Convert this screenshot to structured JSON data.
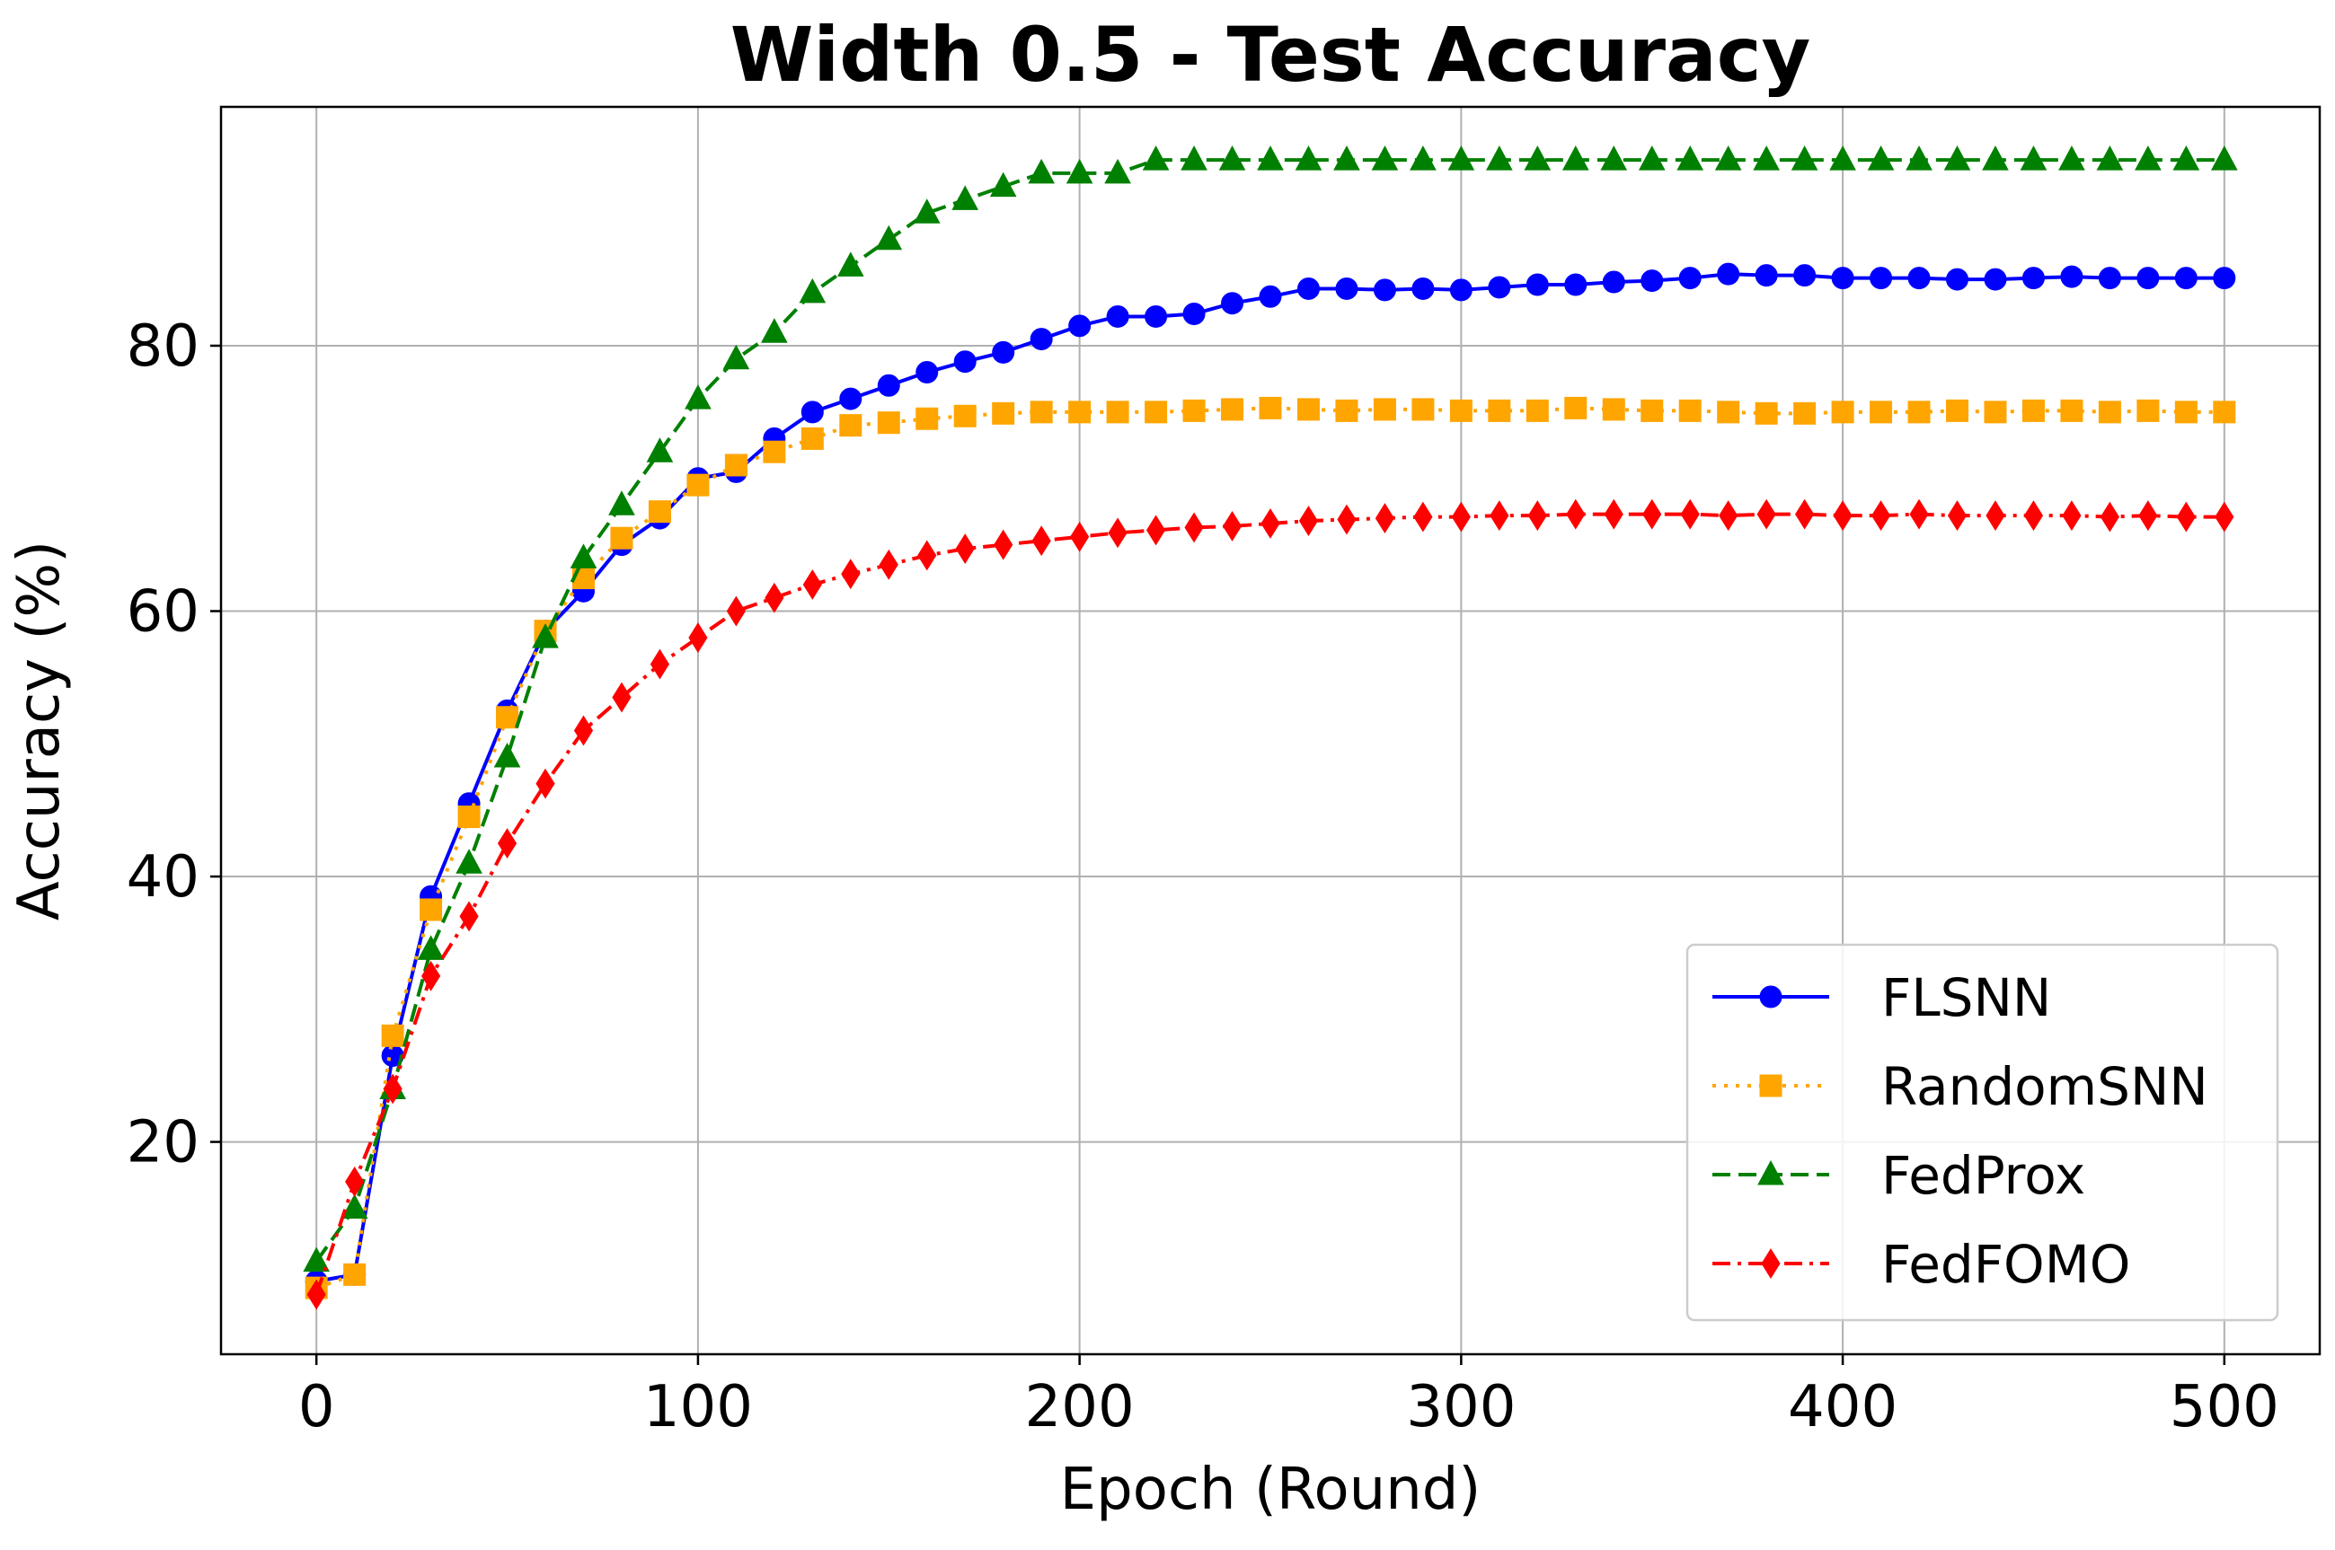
{
  "chart_data": {
    "type": "line",
    "title": "Width 0.5 - Test Accuracy",
    "xlabel": "Epoch (Round)",
    "ylabel": "Accuracy (%)",
    "xlim": [
      -25,
      525
    ],
    "ylim": [
      4,
      98
    ],
    "xticks": [
      0,
      100,
      200,
      300,
      400,
      500
    ],
    "yticks": [
      20,
      40,
      60,
      80
    ],
    "grid": true,
    "legend_position": "lower right",
    "series": [
      {
        "name": "FLSNN",
        "color": "#0000ff",
        "linestyle": "solid",
        "marker": "circle",
        "x": [
          0,
          10,
          20,
          30,
          40,
          50,
          60,
          70,
          80,
          90,
          100,
          110,
          120,
          130,
          140,
          150,
          160,
          170,
          180,
          190,
          200,
          210,
          220,
          230,
          240,
          250,
          260,
          270,
          280,
          290,
          300,
          310,
          320,
          330,
          340,
          350,
          360,
          370,
          380,
          390,
          400,
          410,
          420,
          430,
          440,
          450,
          460,
          470,
          480,
          490,
          500
        ],
        "values": [
          9.5,
          10,
          26.5,
          38.5,
          45.5,
          52.5,
          58.5,
          61.5,
          65,
          67,
          70,
          70.5,
          73,
          75,
          76,
          77,
          78,
          78.8,
          79.5,
          80.5,
          81.5,
          82.2,
          82.2,
          82.4,
          83.2,
          83.7,
          84.3,
          84.3,
          84.2,
          84.3,
          84.2,
          84.4,
          84.6,
          84.6,
          84.8,
          84.9,
          85.1,
          85.4,
          85.3,
          85.3,
          85.1,
          85.1,
          85.1,
          85.0,
          85.0,
          85.1,
          85.2,
          85.1,
          85.1,
          85.1,
          85.1
        ]
      },
      {
        "name": "RandomSNN",
        "color": "#ffa500",
        "linestyle": "dotted",
        "marker": "square",
        "x": [
          0,
          10,
          20,
          30,
          40,
          50,
          60,
          70,
          80,
          90,
          100,
          110,
          120,
          130,
          140,
          150,
          160,
          170,
          180,
          190,
          200,
          210,
          220,
          230,
          240,
          250,
          260,
          270,
          280,
          290,
          300,
          310,
          320,
          330,
          340,
          350,
          360,
          370,
          380,
          390,
          400,
          410,
          420,
          430,
          440,
          450,
          460,
          470,
          480,
          490,
          500
        ],
        "values": [
          9,
          10,
          28,
          37.5,
          44.5,
          52,
          58.5,
          62.5,
          65.5,
          67.5,
          69.5,
          71,
          72,
          73,
          74,
          74.2,
          74.5,
          74.7,
          74.9,
          75,
          75,
          75,
          75,
          75.1,
          75.2,
          75.3,
          75.2,
          75.1,
          75.2,
          75.2,
          75.1,
          75.1,
          75.1,
          75.3,
          75.2,
          75.1,
          75.1,
          75.0,
          74.9,
          74.9,
          75.0,
          75.0,
          75.0,
          75.1,
          75.0,
          75.1,
          75.1,
          75.0,
          75.1,
          75.0,
          75.0
        ]
      },
      {
        "name": "FedProx",
        "color": "#008000",
        "linestyle": "dashed",
        "marker": "triangle",
        "x": [
          0,
          10,
          20,
          30,
          40,
          50,
          60,
          70,
          80,
          90,
          100,
          110,
          120,
          130,
          140,
          150,
          160,
          170,
          180,
          190,
          200,
          210,
          220,
          230,
          240,
          250,
          260,
          270,
          280,
          290,
          300,
          310,
          320,
          330,
          340,
          350,
          360,
          370,
          380,
          390,
          400,
          410,
          420,
          430,
          440,
          450,
          460,
          470,
          480,
          490,
          500
        ],
        "values": [
          11,
          15,
          24,
          34.5,
          41,
          49,
          58,
          64,
          68,
          72,
          76,
          79,
          81,
          84,
          86,
          88,
          90,
          91,
          92,
          93,
          93,
          93,
          94,
          94,
          94,
          94,
          94,
          94,
          94,
          94,
          94,
          94,
          94,
          94,
          94,
          94,
          94,
          94,
          94,
          94,
          94,
          94,
          94,
          94,
          94,
          94,
          94,
          94,
          94,
          94,
          94
        ]
      },
      {
        "name": "FedFOMO",
        "color": "#ff0000",
        "linestyle": "dashdot",
        "marker": "diamond",
        "x": [
          0,
          10,
          20,
          30,
          40,
          50,
          60,
          70,
          80,
          90,
          100,
          110,
          120,
          130,
          140,
          150,
          160,
          170,
          180,
          190,
          200,
          210,
          220,
          230,
          240,
          250,
          260,
          270,
          280,
          290,
          300,
          310,
          320,
          330,
          340,
          350,
          360,
          370,
          380,
          390,
          400,
          410,
          420,
          430,
          440,
          450,
          460,
          470,
          480,
          490,
          500
        ],
        "values": [
          8.5,
          17,
          24,
          32.5,
          37,
          42.5,
          47,
          51,
          53.5,
          56,
          58,
          60,
          61,
          62,
          62.8,
          63.5,
          64.2,
          64.7,
          65,
          65.3,
          65.6,
          65.9,
          66.1,
          66.3,
          66.4,
          66.6,
          66.8,
          66.9,
          67,
          67.1,
          67.1,
          67.2,
          67.2,
          67.3,
          67.3,
          67.3,
          67.3,
          67.2,
          67.3,
          67.3,
          67.2,
          67.2,
          67.3,
          67.2,
          67.2,
          67.2,
          67.2,
          67.1,
          67.2,
          67.1,
          67.1
        ]
      }
    ]
  }
}
